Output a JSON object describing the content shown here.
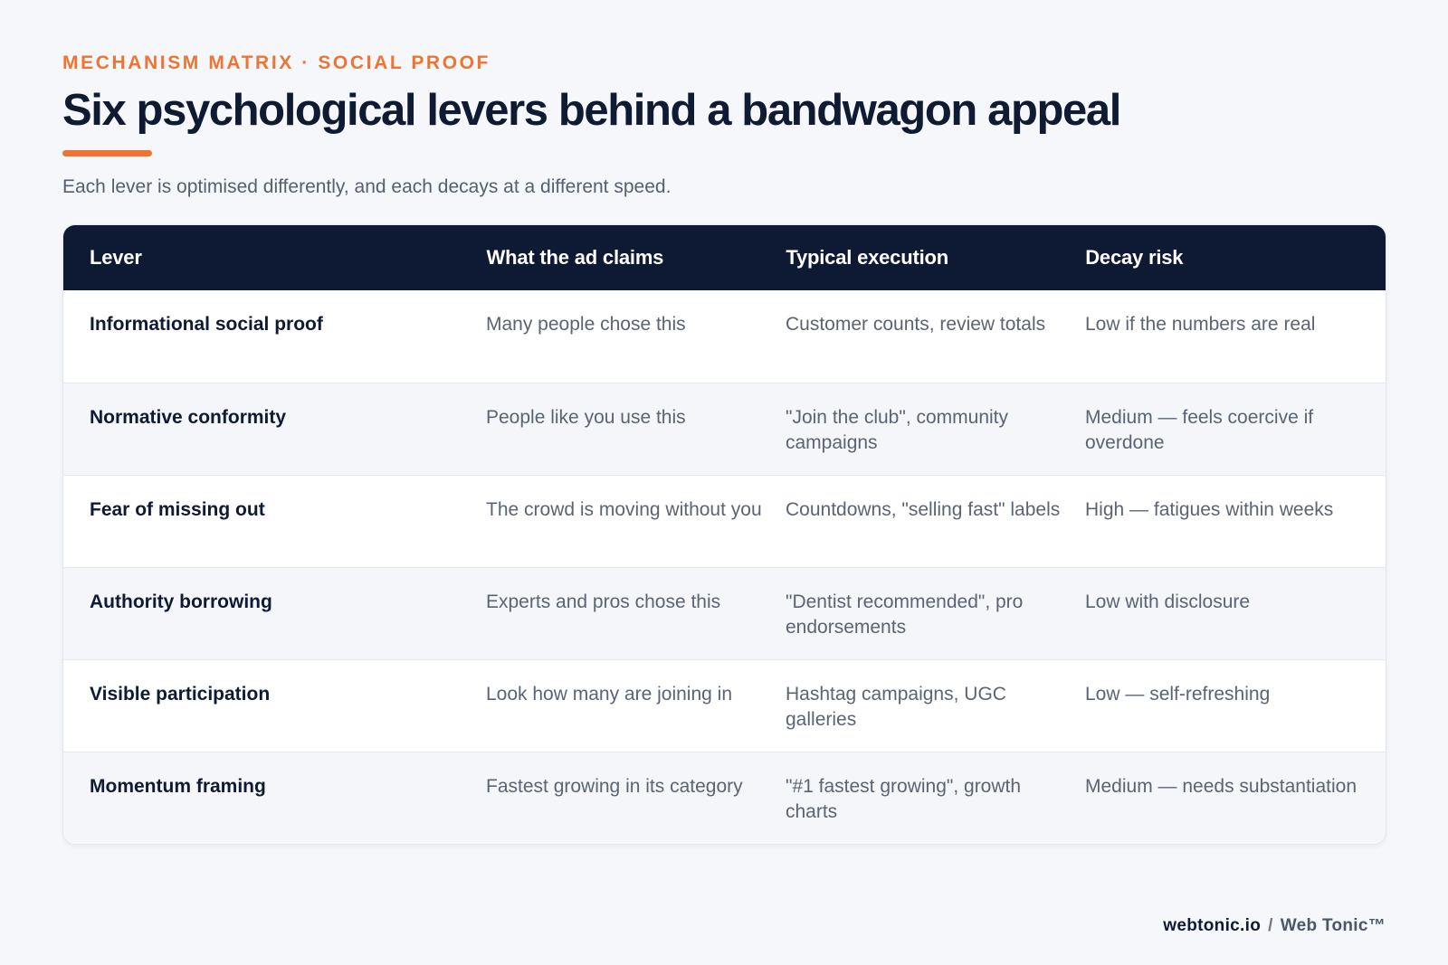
{
  "header": {
    "eyebrow": "MECHANISM MATRIX · SOCIAL PROOF",
    "title": "Six psychological levers behind a bandwagon appeal",
    "subtitle": "Each lever is optimised differently, and each decays at a different speed."
  },
  "table": {
    "columns": [
      "Lever",
      "What the ad claims",
      "Typical execution",
      "Decay risk"
    ],
    "rows": [
      [
        "Informational social proof",
        "Many people chose this",
        "Customer counts, review totals",
        "Low if the numbers are real"
      ],
      [
        "Normative conformity",
        "People like you use this",
        "\"Join the club\", community campaigns",
        "Medium — feels coercive if overdone"
      ],
      [
        "Fear of missing out",
        "The crowd is moving without you",
        "Countdowns, \"selling fast\" labels",
        "High — fatigues within weeks"
      ],
      [
        "Authority borrowing",
        "Experts and pros chose this",
        "\"Dentist recommended\", pro endorsements",
        "Low with disclosure"
      ],
      [
        "Visible participation",
        "Look how many are joining in",
        "Hashtag campaigns, UGC galleries",
        "Low — self-refreshing"
      ],
      [
        "Momentum framing",
        "Fastest growing in its category",
        "\"#1 fastest growing\", growth charts",
        "Medium — needs substantiation"
      ]
    ]
  },
  "footer": {
    "domain": "webtonic.io",
    "separator": "/",
    "brand": "Web Tonic™"
  },
  "colors": {
    "accent": "#ef7434",
    "header_bg": "#0e1a33",
    "page_bg": "#f5f7fa"
  }
}
